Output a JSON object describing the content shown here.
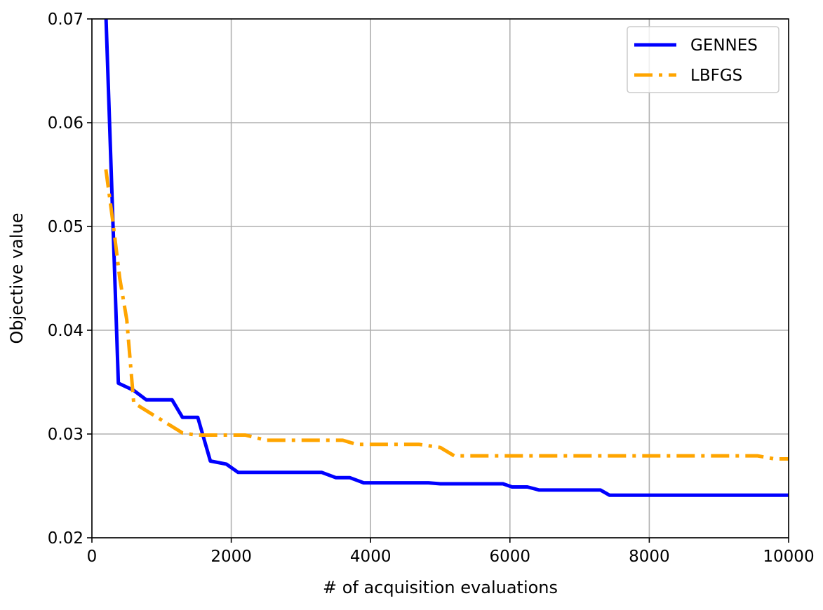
{
  "chart_data": {
    "type": "line",
    "title": "",
    "xlabel": "# of acquisition evaluations",
    "ylabel": "Objective value",
    "xlim": [
      0,
      10000
    ],
    "ylim": [
      0.02,
      0.07
    ],
    "grid": true,
    "legend_position": "top-right",
    "x_ticks": [
      0,
      2000,
      4000,
      6000,
      8000,
      10000
    ],
    "x_tick_labels": [
      "0",
      "2000",
      "4000",
      "6000",
      "8000",
      "10000"
    ],
    "y_ticks": [
      0.02,
      0.03,
      0.04,
      0.05,
      0.06,
      0.07
    ],
    "y_tick_labels": [
      "0.02",
      "0.03",
      "0.04",
      "0.05",
      "0.06",
      "0.07"
    ],
    "series": [
      {
        "name": "GENNES",
        "color": "#0000ff",
        "line_style": "solid",
        "points": [
          [
            200,
            0.0705
          ],
          [
            380,
            0.0349
          ],
          [
            600,
            0.0342
          ],
          [
            780,
            0.0333
          ],
          [
            1150,
            0.0333
          ],
          [
            1300,
            0.0316
          ],
          [
            1520,
            0.0316
          ],
          [
            1700,
            0.0274
          ],
          [
            1930,
            0.0271
          ],
          [
            2100,
            0.0263
          ],
          [
            3300,
            0.0263
          ],
          [
            3500,
            0.0258
          ],
          [
            3700,
            0.0258
          ],
          [
            3900,
            0.0253
          ],
          [
            4830,
            0.0253
          ],
          [
            5000,
            0.0252
          ],
          [
            5900,
            0.0252
          ],
          [
            6030,
            0.0249
          ],
          [
            6250,
            0.0249
          ],
          [
            6420,
            0.0246
          ],
          [
            7300,
            0.0246
          ],
          [
            7430,
            0.0241
          ],
          [
            10000,
            0.0241
          ]
        ]
      },
      {
        "name": "LBFGS",
        "color": "#ffa500",
        "line_style": "dashdot",
        "points": [
          [
            200,
            0.0555
          ],
          [
            300,
            0.0505
          ],
          [
            400,
            0.045
          ],
          [
            500,
            0.041
          ],
          [
            600,
            0.033
          ],
          [
            1300,
            0.0301
          ],
          [
            1500,
            0.0299
          ],
          [
            2200,
            0.0299
          ],
          [
            2500,
            0.0294
          ],
          [
            3600,
            0.0294
          ],
          [
            3800,
            0.029
          ],
          [
            4700,
            0.029
          ],
          [
            5000,
            0.0287
          ],
          [
            5200,
            0.0279
          ],
          [
            9550,
            0.0279
          ],
          [
            9800,
            0.0276
          ],
          [
            10000,
            0.0276
          ]
        ]
      }
    ]
  }
}
